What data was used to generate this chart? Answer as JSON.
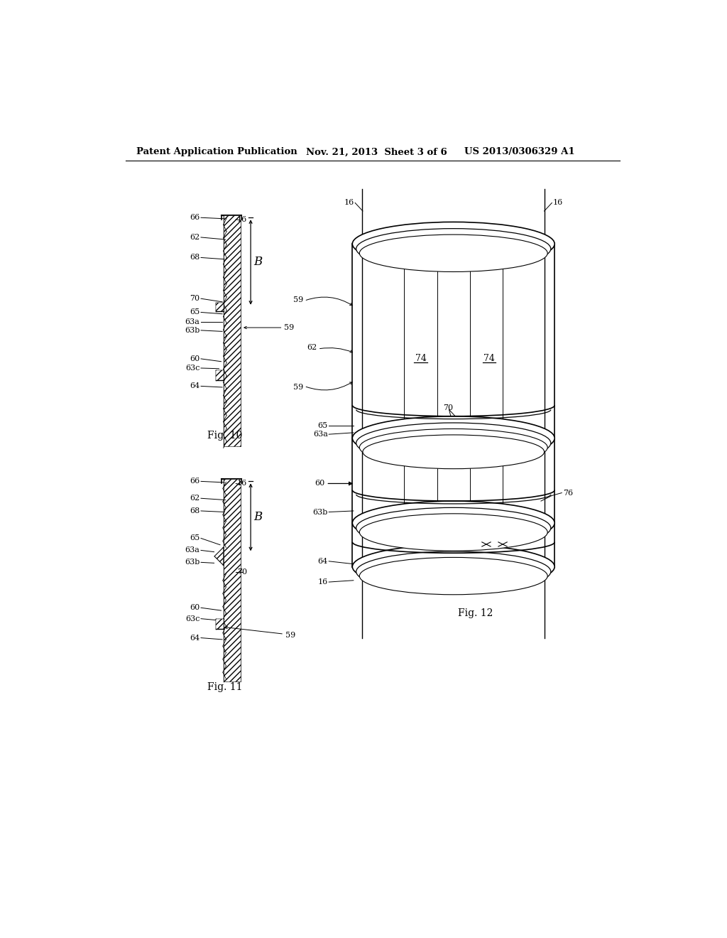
{
  "bg_color": "#ffffff",
  "line_color": "#000000",
  "header_text1": "Patent Application Publication",
  "header_text2": "Nov. 21, 2013  Sheet 3 of 6",
  "header_text3": "US 2013/0306329 A1"
}
